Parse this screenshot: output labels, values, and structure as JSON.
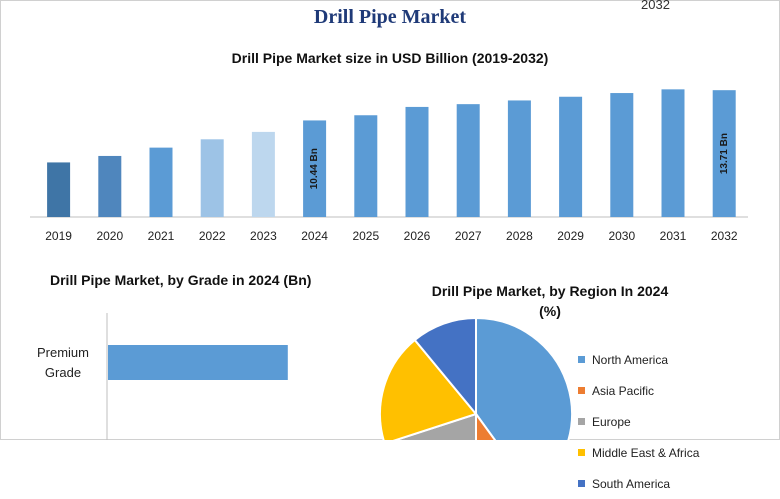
{
  "header": {
    "title": "Drill Pipe Market",
    "corner_text": "2032"
  },
  "chart_data": [
    {
      "type": "bar",
      "title": "Drill Pipe Market size in USD Billion (2019-2032)",
      "categories": [
        "2019",
        "2020",
        "2021",
        "2022",
        "2023",
        "2024",
        "2025",
        "2026",
        "2027",
        "2028",
        "2029",
        "2030",
        "2031",
        "2032"
      ],
      "values": [
        5.9,
        6.6,
        7.5,
        8.4,
        9.2,
        10.44,
        11.0,
        11.9,
        12.2,
        12.6,
        13.0,
        13.4,
        13.8,
        13.71
      ],
      "data_labels": {
        "2024": "10.44 Bn",
        "2032": "13.71 Bn"
      },
      "colors": [
        "#3f75a6",
        "#4f86bd",
        "#5b9bd5",
        "#9dc3e6",
        "#bdd7ee",
        "#5b9bd5",
        "#5b9bd5",
        "#5b9bd5",
        "#5b9bd5",
        "#5b9bd5",
        "#5b9bd5",
        "#5b9bd5",
        "#5b9bd5",
        "#5b9bd5"
      ],
      "ylim": [
        0,
        16
      ],
      "grid": false
    },
    {
      "type": "bar",
      "orientation": "horizontal",
      "title": "Drill Pipe Market, by Grade in 2024 (Bn)",
      "categories": [
        "Premium Grade"
      ],
      "values": [
        6.2
      ],
      "xlim": [
        0,
        10
      ],
      "color": "#5b9bd5"
    },
    {
      "type": "pie",
      "title": "Drill Pipe Market, by Region In 2024",
      "subtitle": "(%)",
      "labels": [
        "North America",
        "Asia Pacific",
        "Europe",
        "Middle East & Africa",
        "South America"
      ],
      "values": [
        40,
        10,
        20,
        19,
        11
      ],
      "colors": [
        "#5b9bd5",
        "#ed7d31",
        "#a5a5a5",
        "#ffc000",
        "#4472c4"
      ],
      "legend_position": "right"
    }
  ]
}
